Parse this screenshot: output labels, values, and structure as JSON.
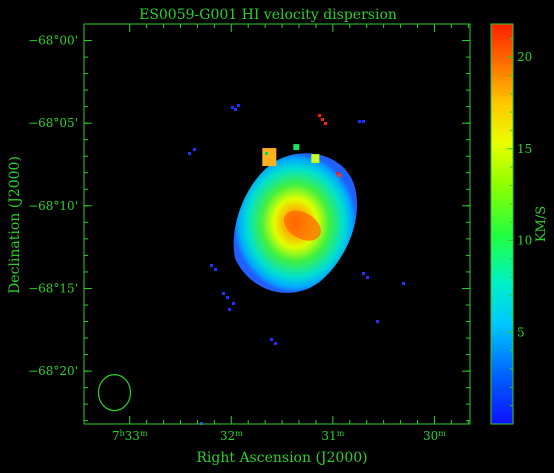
{
  "chart_data": {
    "type": "heatmap",
    "title": "ES0059-G001  HI velocity dispersion",
    "xlabel": "Right Ascension (J2000)",
    "ylabel": "Declination (J2000)",
    "x_ticks": [
      {
        "h": "7",
        "m": "33",
        "label": "7h33m",
        "ra_min": 33
      },
      {
        "h": "",
        "m": "32",
        "label": "32m",
        "ra_min": 32
      },
      {
        "h": "",
        "m": "31",
        "label": "31m",
        "ra_min": 31
      },
      {
        "h": "",
        "m": "30",
        "label": "30m",
        "ra_min": 30
      }
    ],
    "y_ticks": [
      {
        "label": "−68°00'",
        "dec_arcmin": 0
      },
      {
        "label": "−68°05'",
        "dec_arcmin": -5
      },
      {
        "label": "−68°10'",
        "dec_arcmin": -10
      },
      {
        "label": "−68°15'",
        "dec_arcmin": -15
      },
      {
        "label": "−68°20'",
        "dec_arcmin": -20
      }
    ],
    "xlim_ra_min": [
      33.45,
      29.65
    ],
    "ylim_dec_arcmin": [
      1.0,
      -23.2
    ],
    "colorbar": {
      "label": "KM/S",
      "min": 0,
      "max": 21.8,
      "ticks": [
        5,
        10,
        15,
        20
      ],
      "colormap": "rainbow (blue → cyan → green → yellow → red)"
    },
    "source": {
      "center_ra_min": 31.35,
      "center_dec_arcmin": -10.5,
      "peak_kms": 20,
      "peak_ra_min": 31.3,
      "peak_dec_arcmin": -11.2,
      "edge_kms": 3
    },
    "beam": {
      "ra_min": 33.15,
      "dec_arcmin": -21.3
    }
  },
  "colors": {
    "background": "#000000",
    "axes": "#2bd12b",
    "text": "#2bd12b"
  }
}
